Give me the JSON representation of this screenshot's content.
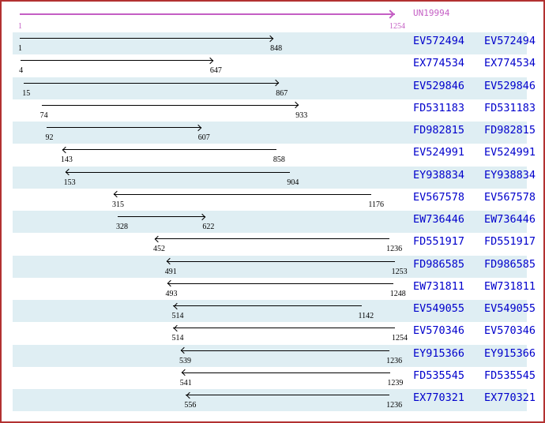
{
  "viewer": {
    "colors": {
      "border": "#b23131",
      "stripe": "#dfeef3",
      "unigene": "#c45ec4",
      "accession_link": "#0000cc",
      "est_arrow": "#000000"
    },
    "unigene": {
      "id": "UN19994",
      "start": 1,
      "end": 1254,
      "direction": "right"
    },
    "ests": [
      {
        "id": "EV572494",
        "start": 1,
        "end": 848,
        "direction": "right"
      },
      {
        "id": "EX774534",
        "start": 4,
        "end": 647,
        "direction": "right"
      },
      {
        "id": "EV529846",
        "start": 15,
        "end": 867,
        "direction": "right"
      },
      {
        "id": "FD531183",
        "start": 74,
        "end": 933,
        "direction": "right"
      },
      {
        "id": "FD982815",
        "start": 92,
        "end": 607,
        "direction": "right"
      },
      {
        "id": "EV524991",
        "start": 143,
        "end": 858,
        "direction": "left"
      },
      {
        "id": "EY938834",
        "start": 153,
        "end": 904,
        "direction": "left"
      },
      {
        "id": "EV567578",
        "start": 315,
        "end": 1176,
        "direction": "left"
      },
      {
        "id": "EW736446",
        "start": 328,
        "end": 622,
        "direction": "right"
      },
      {
        "id": "FD551917",
        "start": 452,
        "end": 1236,
        "direction": "left"
      },
      {
        "id": "FD986585",
        "start": 491,
        "end": 1253,
        "direction": "left"
      },
      {
        "id": "EW731811",
        "start": 493,
        "end": 1248,
        "direction": "left"
      },
      {
        "id": "EV549055",
        "start": 514,
        "end": 1142,
        "direction": "left"
      },
      {
        "id": "EV570346",
        "start": 514,
        "end": 1254,
        "direction": "left"
      },
      {
        "id": "EY915366",
        "start": 539,
        "end": 1236,
        "direction": "left"
      },
      {
        "id": "FD535545",
        "start": 541,
        "end": 1239,
        "direction": "left"
      },
      {
        "id": "EX770321",
        "start": 556,
        "end": 1236,
        "direction": "left"
      }
    ]
  }
}
